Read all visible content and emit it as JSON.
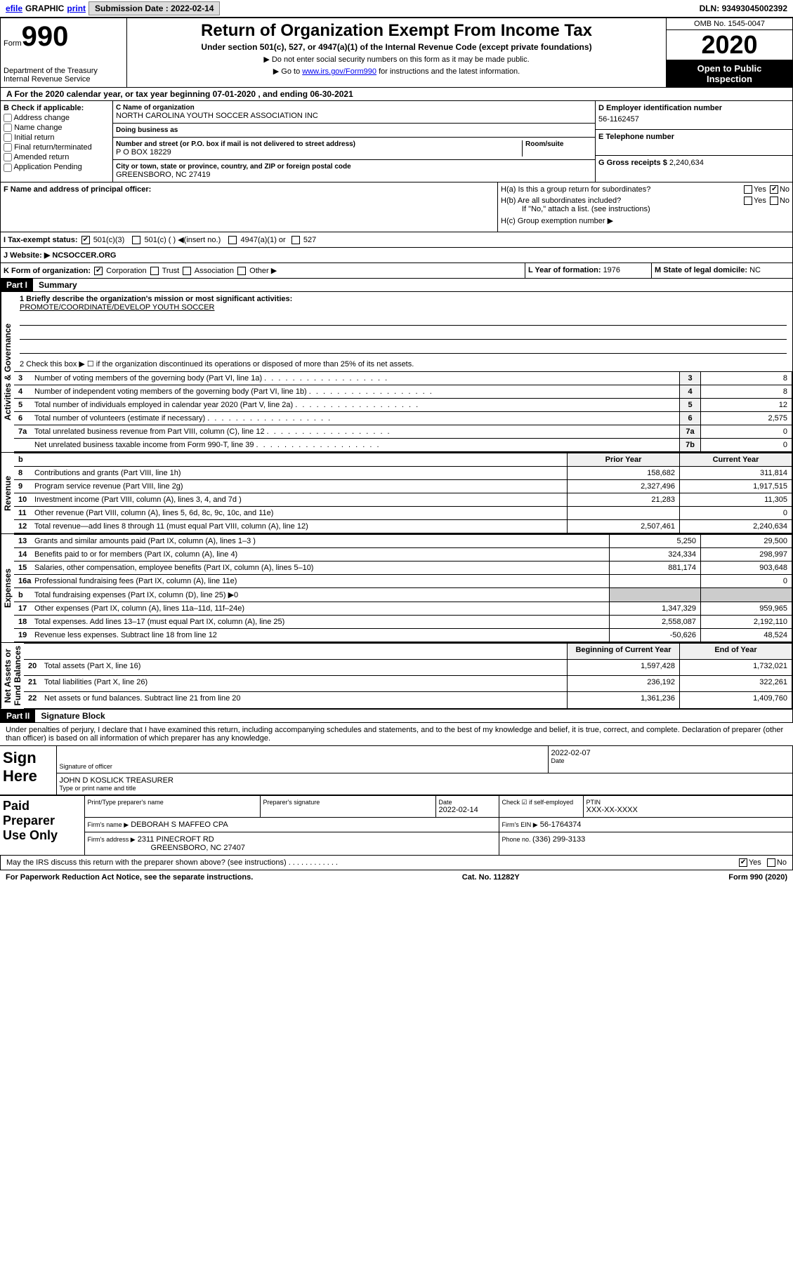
{
  "topbar": {
    "efile": "efile",
    "graphic": "GRAPHIC",
    "print": "print",
    "sub_label": "Submission Date : ",
    "sub_date": "2022-02-14",
    "dln_label": "DLN: ",
    "dln": "93493045002392"
  },
  "header": {
    "form_word": "Form",
    "form_num": "990",
    "dept": "Department of the Treasury\nInternal Revenue Service",
    "title": "Return of Organization Exempt From Income Tax",
    "subtitle": "Under section 501(c), 527, or 4947(a)(1) of the Internal Revenue Code (except private foundations)",
    "note1": "▶ Do not enter social security numbers on this form as it may be made public.",
    "note2_a": "▶ Go to ",
    "note2_link": "www.irs.gov/Form990",
    "note2_b": " for instructions and the latest information.",
    "omb": "OMB No. 1545-0047",
    "year": "2020",
    "open": "Open to Public\nInspection"
  },
  "periodA": "A   For the 2020 calendar year, or tax year beginning 07-01-2020    , and ending 06-30-2021",
  "B": {
    "title": "B Check if applicable:",
    "addr": "Address change",
    "name": "Name change",
    "init": "Initial return",
    "final": "Final return/terminated",
    "amend": "Amended return",
    "app": "Application Pending"
  },
  "C": {
    "name_lbl": "C Name of organization",
    "name": "NORTH CAROLINA YOUTH SOCCER ASSOCIATION INC",
    "dba_lbl": "Doing business as",
    "dba": "",
    "street_lbl": "Number and street (or P.O. box if mail is not delivered to street address)",
    "room_lbl": "Room/suite",
    "street": "P O BOX 18229",
    "city_lbl": "City or town, state or province, country, and ZIP or foreign postal code",
    "city": "GREENSBORO, NC  27419"
  },
  "D": {
    "lbl": "D Employer identification number",
    "val": "56-1162457"
  },
  "E": {
    "lbl": "E Telephone number",
    "val": ""
  },
  "G": {
    "lbl": "G Gross receipts $ ",
    "val": "2,240,634"
  },
  "F": {
    "lbl": "F  Name and address of principal officer:"
  },
  "H": {
    "a": "H(a)  Is this a group return for subordinates?",
    "a_no": true,
    "b": "H(b)  Are all subordinates included?",
    "b_note": "If \"No,\" attach a list. (see instructions)",
    "c": "H(c)  Group exemption number ▶"
  },
  "I": {
    "lbl": "I   Tax-exempt status:",
    "c3": "501(c)(3)",
    "c": "501(c) (  ) ◀(insert no.)",
    "a": "4947(a)(1) or",
    "s": "527"
  },
  "J": {
    "lbl": "J   Website: ▶",
    "val": "  NCSOCCER.ORG"
  },
  "K": {
    "lbl": "K Form of organization:",
    "corp": "Corporation",
    "trust": "Trust",
    "assoc": "Association",
    "other": "Other ▶"
  },
  "L": {
    "lbl": "L Year of formation: ",
    "val": "1976"
  },
  "M": {
    "lbl": "M State of legal domicile: ",
    "val": "NC"
  },
  "part1": {
    "hdr": "Part I",
    "title": "Summary"
  },
  "mission": {
    "q": "1  Briefly describe the organization's mission or most significant activities:",
    "a": "PROMOTE/COORDINATE/DEVELOP YOUTH SOCCER"
  },
  "line2": "2  Check this box ▶ ☐  if the organization discontinued its operations or disposed of more than 25% of its net assets.",
  "gov_rows": [
    {
      "n": "3",
      "t": "Number of voting members of the governing body (Part VI, line 1a)",
      "b": "3",
      "v": "8"
    },
    {
      "n": "4",
      "t": "Number of independent voting members of the governing body (Part VI, line 1b)",
      "b": "4",
      "v": "8"
    },
    {
      "n": "5",
      "t": "Total number of individuals employed in calendar year 2020 (Part V, line 2a)",
      "b": "5",
      "v": "12"
    },
    {
      "n": "6",
      "t": "Total number of volunteers (estimate if necessary)",
      "b": "6",
      "v": "2,575"
    },
    {
      "n": "7a",
      "t": "Total unrelated business revenue from Part VIII, column (C), line 12",
      "b": "7a",
      "v": "0"
    },
    {
      "n": "",
      "t": "Net unrelated business taxable income from Form 990-T, line 39",
      "b": "7b",
      "v": "0"
    }
  ],
  "two_col_hdr": {
    "b": "b",
    "prior": "Prior Year",
    "curr": "Current Year"
  },
  "rev_rows": [
    {
      "n": "8",
      "t": "Contributions and grants (Part VIII, line 1h)",
      "p": "158,682",
      "c": "311,814"
    },
    {
      "n": "9",
      "t": "Program service revenue (Part VIII, line 2g)",
      "p": "2,327,496",
      "c": "1,917,515"
    },
    {
      "n": "10",
      "t": "Investment income (Part VIII, column (A), lines 3, 4, and 7d )",
      "p": "21,283",
      "c": "11,305"
    },
    {
      "n": "11",
      "t": "Other revenue (Part VIII, column (A), lines 5, 6d, 8c, 9c, 10c, and 11e)",
      "p": "",
      "c": "0"
    },
    {
      "n": "12",
      "t": "Total revenue—add lines 8 through 11 (must equal Part VIII, column (A), line 12)",
      "p": "2,507,461",
      "c": "2,240,634"
    }
  ],
  "exp_rows": [
    {
      "n": "13",
      "t": "Grants and similar amounts paid (Part IX, column (A), lines 1–3 )",
      "p": "5,250",
      "c": "29,500"
    },
    {
      "n": "14",
      "t": "Benefits paid to or for members (Part IX, column (A), line 4)",
      "p": "324,334",
      "c": "298,997"
    },
    {
      "n": "15",
      "t": "Salaries, other compensation, employee benefits (Part IX, column (A), lines 5–10)",
      "p": "881,174",
      "c": "903,648"
    },
    {
      "n": "16a",
      "t": "Professional fundraising fees (Part IX, column (A), line 11e)",
      "p": "",
      "c": "0"
    },
    {
      "n": "b",
      "t": "Total fundraising expenses (Part IX, column (D), line 25) ▶0",
      "p": "blank",
      "c": "blank"
    },
    {
      "n": "17",
      "t": "Other expenses (Part IX, column (A), lines 11a–11d, 11f–24e)",
      "p": "1,347,329",
      "c": "959,965"
    },
    {
      "n": "18",
      "t": "Total expenses. Add lines 13–17 (must equal Part IX, column (A), line 25)",
      "p": "2,558,087",
      "c": "2,192,110"
    },
    {
      "n": "19",
      "t": "Revenue less expenses. Subtract line 18 from line 12",
      "p": "-50,626",
      "c": "48,524"
    }
  ],
  "net_hdr": {
    "beg": "Beginning of Current Year",
    "end": "End of Year"
  },
  "net_rows": [
    {
      "n": "20",
      "t": "Total assets (Part X, line 16)",
      "p": "1,597,428",
      "c": "1,732,021"
    },
    {
      "n": "21",
      "t": "Total liabilities (Part X, line 26)",
      "p": "236,192",
      "c": "322,261"
    },
    {
      "n": "22",
      "t": "Net assets or fund balances. Subtract line 21 from line 20",
      "p": "1,361,236",
      "c": "1,409,760"
    }
  ],
  "vert": {
    "gov": "Activities & Governance",
    "rev": "Revenue",
    "exp": "Expenses",
    "net": "Net Assets or\nFund Balances"
  },
  "part2": {
    "hdr": "Part II",
    "title": "Signature Block"
  },
  "sig_perjury": "Under penalties of perjury, I declare that I have examined this return, including accompanying schedules and statements, and to the best of my knowledge and belief, it is true, correct, and complete. Declaration of preparer (other than officer) is based on all information of which preparer has any knowledge.",
  "sign_here": "Sign\nHere",
  "sig_officer_lbl": "Signature of officer",
  "sig_date_lbl": "Date",
  "sig_date": "2022-02-07",
  "sig_name": "JOHN D KOSLICK  TREASURER",
  "sig_name_lbl": "Type or print name and title",
  "paid": "Paid\nPreparer\nUse Only",
  "prep": {
    "name_lbl": "Print/Type preparer's name",
    "name": "",
    "sig_lbl": "Preparer's signature",
    "date_lbl": "Date",
    "date": "2022-02-14",
    "check_lbl": "Check ☑ if self-employed",
    "ptin_lbl": "PTIN",
    "ptin": "XXX-XX-XXXX",
    "firm_lbl": "Firm's name     ▶",
    "firm": "DEBORAH S MAFFEO CPA",
    "ein_lbl": "Firm's EIN ▶",
    "ein": "56-1764374",
    "addr_lbl": "Firm's address ▶",
    "addr1": "2311 PINECROFT RD",
    "addr2": "GREENSBORO, NC  27407",
    "phone_lbl": "Phone no. ",
    "phone": "(336) 299-3133"
  },
  "discuss": "May the IRS discuss this return with the preparer shown above? (see instructions)",
  "yes": "Yes",
  "no": "No",
  "footer": {
    "left": "For Paperwork Reduction Act Notice, see the separate instructions.",
    "mid": "Cat. No. 11282Y",
    "right": "Form 990 (2020)"
  }
}
